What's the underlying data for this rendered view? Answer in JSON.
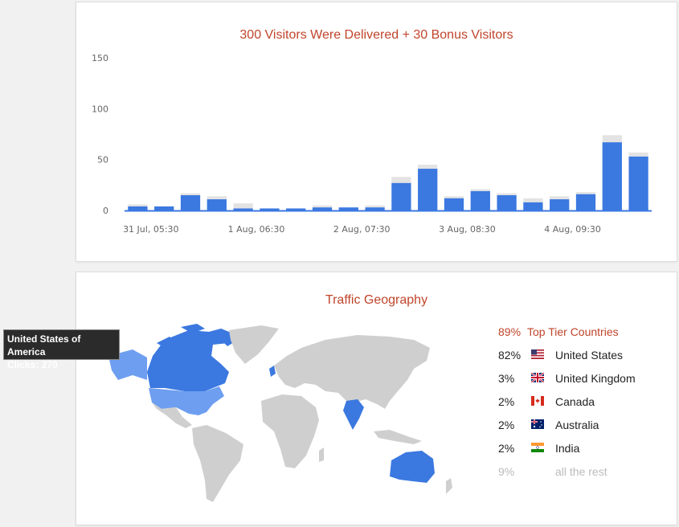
{
  "chart_data": [
    {
      "type": "bar",
      "title": "300 Visitors Were Delivered + 30 Bonus Visitors",
      "ylim": [
        0,
        150
      ],
      "yticks": [
        "150",
        "100",
        "50",
        "0"
      ],
      "xticks": [
        "31 Jul, 05:30",
        "1 Aug, 06:30",
        "2 Aug, 07:30",
        "3 Aug, 08:30",
        "4 Aug, 09:30"
      ],
      "series": [
        {
          "values": [
            4,
            4,
            15,
            11,
            2,
            2,
            2,
            3,
            3,
            3,
            27,
            41,
            12,
            19,
            15,
            8,
            11,
            16,
            67,
            53
          ]
        },
        {
          "values": [
            2,
            0,
            2,
            3,
            5,
            0,
            0,
            2,
            0,
            2,
            6,
            4,
            2,
            2,
            2,
            4,
            3,
            2,
            7,
            4
          ]
        }
      ],
      "grid": false
    },
    {
      "type": "table",
      "title": "Traffic Geography",
      "rows": [
        {
          "pct": "89%",
          "name": "Top Tier Countries"
        },
        {
          "pct": "82%",
          "name": "United States",
          "flag": "us-flag-icon"
        },
        {
          "pct": "3%",
          "name": "United Kingdom",
          "flag": "uk-flag-icon"
        },
        {
          "pct": "2%",
          "name": "Canada",
          "flag": "canada-flag-icon"
        },
        {
          "pct": "2%",
          "name": "Australia",
          "flag": "australia-flag-icon"
        },
        {
          "pct": "2%",
          "name": "India",
          "flag": "india-flag-icon"
        },
        {
          "pct": "9%",
          "name": "all the rest"
        }
      ]
    }
  ],
  "tooltip": {
    "country": "United States of America",
    "clicks_label": "Clicks:",
    "clicks_value": "270"
  },
  "colors": {
    "accent": "#c0452b",
    "bar": "#3b78e0",
    "bar_bonus": "#e3e3e3",
    "map_highlight": "#3b78e0",
    "map_land": "#cfcfcf"
  }
}
